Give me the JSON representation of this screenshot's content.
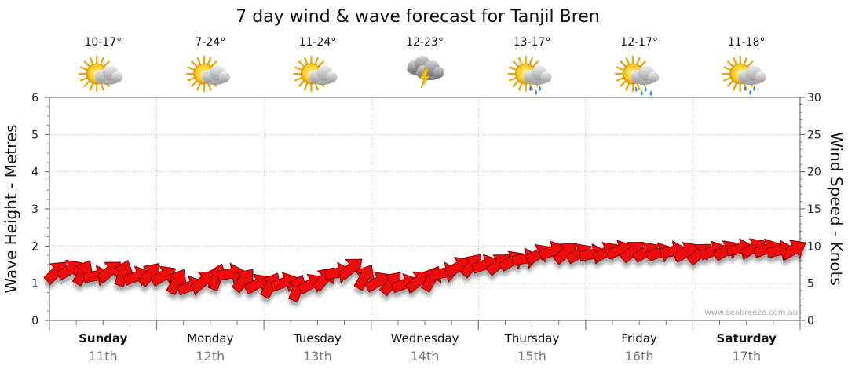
{
  "chart_data": {
    "type": "line",
    "title": "7 day wind & wave forecast for Tanjil Bren",
    "ylabel_left": "Wave Height - Metres",
    "ylabel_right": "Wind Speed - Knots",
    "ylim_left": [
      0,
      6
    ],
    "ylim_right": [
      0,
      30
    ],
    "yticks_left": [
      "0",
      "1",
      "2",
      "3",
      "4",
      "5",
      "6"
    ],
    "yticks_right": [
      "0",
      "5",
      "10",
      "15",
      "20",
      "25",
      "30"
    ],
    "grid": true,
    "credit": "www.seabreeze.com.au",
    "days": [
      {
        "name": "Sunday",
        "date": "11th",
        "temp": "10-17°",
        "icon": "partly-cloudy-icon",
        "bold": true
      },
      {
        "name": "Monday",
        "date": "12th",
        "temp": "7-24°",
        "icon": "partly-cloudy-icon",
        "bold": false
      },
      {
        "name": "Tuesday",
        "date": "13th",
        "temp": "11-24°",
        "icon": "partly-cloudy-icon",
        "bold": false
      },
      {
        "name": "Wednesday",
        "date": "14th",
        "temp": "12-23°",
        "icon": "thunderstorm-icon",
        "bold": false
      },
      {
        "name": "Thursday",
        "date": "15th",
        "temp": "13-17°",
        "icon": "showers-icon",
        "bold": false
      },
      {
        "name": "Friday",
        "date": "16th",
        "temp": "12-17°",
        "icon": "rain-icon",
        "bold": false
      },
      {
        "name": "Saturday",
        "date": "17th",
        "temp": "11-18°",
        "icon": "showers-icon",
        "bold": true
      }
    ],
    "wind_series": {
      "name": "Wind Speed (knots)",
      "color": "#ee1111",
      "step_hours": 3,
      "speed": [
        6.5,
        6.8,
        6.4,
        6.0,
        6.6,
        6.3,
        5.9,
        6.2,
        6.0,
        5.2,
        4.6,
        5.3,
        5.8,
        6.3,
        5.4,
        4.9,
        4.7,
        5.1,
        4.3,
        4.9,
        5.6,
        6.4,
        7.0,
        5.8,
        5.2,
        5.0,
        4.9,
        5.3,
        5.6,
        6.4,
        7.2,
        7.4,
        7.5,
        7.6,
        8.0,
        8.3,
        8.9,
        9.3,
        9.1,
        9.0,
        8.9,
        9.2,
        9.4,
        9.3,
        9.2,
        9.1,
        9.3,
        9.2,
        9.0,
        9.3,
        9.4,
        9.6,
        9.7,
        9.6,
        9.4,
        9.5
      ],
      "direction_deg": [
        45,
        60,
        30,
        80,
        50,
        20,
        70,
        40,
        60,
        30,
        70,
        50,
        20,
        80,
        40,
        60,
        30,
        70,
        20,
        60,
        40,
        80,
        50,
        30,
        60,
        40,
        70,
        50,
        30,
        80,
        60,
        40,
        70,
        50,
        60,
        80,
        60,
        70,
        50,
        60,
        80,
        60,
        70,
        50,
        60,
        70,
        80,
        60,
        50,
        70,
        60,
        80,
        60,
        70,
        80,
        60
      ]
    }
  }
}
